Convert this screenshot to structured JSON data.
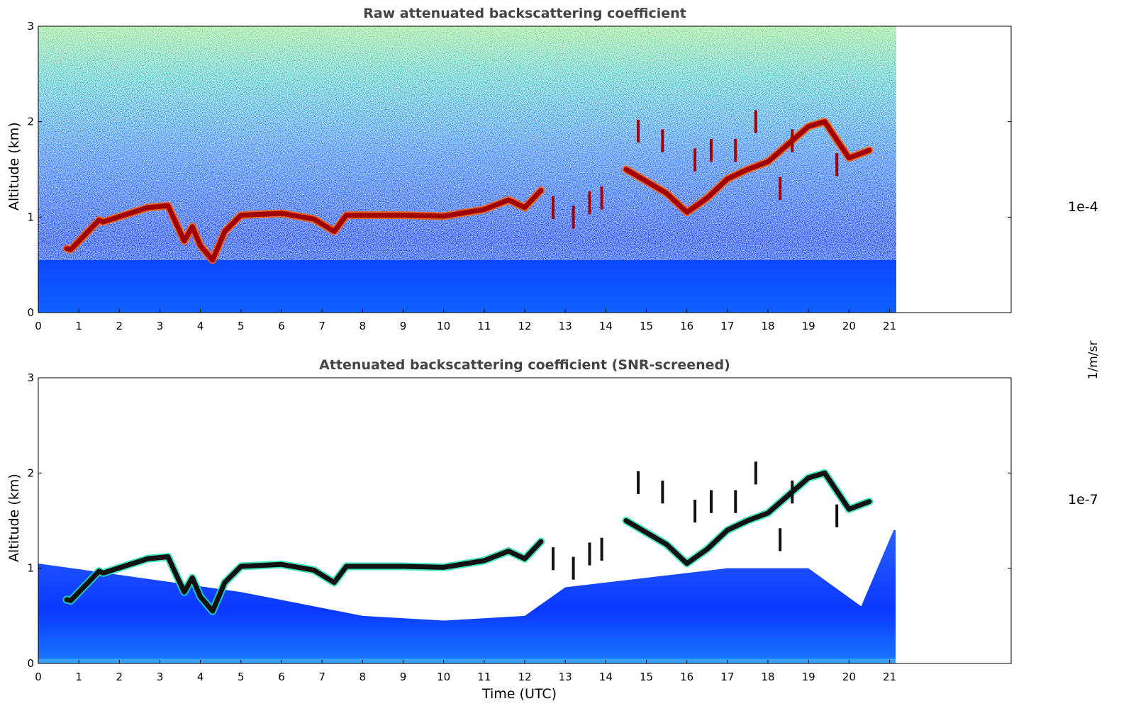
{
  "chart_data": [
    {
      "type": "heatmap",
      "title": "Raw attenuated backscattering coefficient",
      "xlabel": "",
      "ylabel": "Altitude (km)",
      "xlim": [
        0,
        24
      ],
      "ylim": [
        0,
        3
      ],
      "xticks": [
        "0",
        "1",
        "2",
        "3",
        "4",
        "5",
        "6",
        "7",
        "8",
        "9",
        "10",
        "11",
        "12",
        "13",
        "14",
        "15",
        "16",
        "17",
        "18",
        "19",
        "20",
        "21"
      ],
      "yticks": [
        "0",
        "1",
        "2",
        "3"
      ],
      "data_extent_hours": [
        0,
        21.15
      ],
      "cloud_layer_km": [
        [
          0.7,
          0.67
        ],
        [
          0.8,
          0.66
        ],
        [
          1.5,
          0.97
        ],
        [
          1.6,
          0.95
        ],
        [
          2.7,
          1.1
        ],
        [
          3.2,
          1.12
        ],
        [
          3.6,
          0.75
        ],
        [
          3.8,
          0.9
        ],
        [
          4.0,
          0.7
        ],
        [
          4.3,
          0.55
        ],
        [
          4.6,
          0.85
        ],
        [
          5.0,
          1.02
        ],
        [
          6.0,
          1.04
        ],
        [
          6.8,
          0.98
        ],
        [
          7.3,
          0.85
        ],
        [
          7.6,
          1.02
        ],
        [
          9.0,
          1.02
        ],
        [
          10.0,
          1.01
        ],
        [
          11.0,
          1.08
        ],
        [
          11.6,
          1.18
        ],
        [
          12.0,
          1.1
        ],
        [
          12.4,
          1.28
        ]
      ],
      "upper_cloud_km": [
        [
          14.5,
          1.5
        ],
        [
          15.5,
          1.25
        ],
        [
          16.0,
          1.05
        ],
        [
          16.5,
          1.2
        ],
        [
          17.0,
          1.4
        ],
        [
          17.5,
          1.5
        ],
        [
          18.0,
          1.58
        ],
        [
          19.0,
          1.95
        ],
        [
          19.4,
          2.0
        ],
        [
          20.0,
          1.62
        ],
        [
          20.5,
          1.7
        ]
      ],
      "noise_floor_km": 0.55
    },
    {
      "type": "heatmap",
      "title": "Attenuated backscattering coefficient (SNR-screened)",
      "xlabel": "Time (UTC)",
      "ylabel": "Altitude (km)",
      "xlim": [
        0,
        24
      ],
      "ylim": [
        0,
        3
      ],
      "xticks": [
        "0",
        "1",
        "2",
        "3",
        "4",
        "5",
        "6",
        "7",
        "8",
        "9",
        "10",
        "11",
        "12",
        "13",
        "14",
        "15",
        "16",
        "17",
        "18",
        "19",
        "20",
        "21"
      ],
      "yticks": [
        "0",
        "1",
        "2",
        "3"
      ],
      "data_extent_hours": [
        0,
        21.15
      ],
      "cloud_layer_km": [
        [
          0.7,
          0.67
        ],
        [
          0.8,
          0.66
        ],
        [
          1.5,
          0.97
        ],
        [
          1.6,
          0.95
        ],
        [
          2.7,
          1.1
        ],
        [
          3.2,
          1.12
        ],
        [
          3.6,
          0.75
        ],
        [
          3.8,
          0.9
        ],
        [
          4.0,
          0.7
        ],
        [
          4.3,
          0.55
        ],
        [
          4.6,
          0.85
        ],
        [
          5.0,
          1.02
        ],
        [
          6.0,
          1.04
        ],
        [
          6.8,
          0.98
        ],
        [
          7.3,
          0.85
        ],
        [
          7.6,
          1.02
        ],
        [
          9.0,
          1.02
        ],
        [
          10.0,
          1.01
        ],
        [
          11.0,
          1.08
        ],
        [
          11.6,
          1.18
        ],
        [
          12.0,
          1.1
        ],
        [
          12.4,
          1.28
        ]
      ],
      "upper_cloud_km": [
        [
          14.5,
          1.5
        ],
        [
          15.5,
          1.25
        ],
        [
          16.0,
          1.05
        ],
        [
          16.5,
          1.2
        ],
        [
          17.0,
          1.4
        ],
        [
          17.5,
          1.5
        ],
        [
          18.0,
          1.58
        ],
        [
          19.0,
          1.95
        ],
        [
          19.4,
          2.0
        ],
        [
          20.0,
          1.62
        ],
        [
          20.5,
          1.7
        ]
      ],
      "aerosol_top_km": [
        [
          0,
          1.05
        ],
        [
          5,
          0.75
        ],
        [
          8,
          0.5
        ],
        [
          10,
          0.45
        ],
        [
          12,
          0.5
        ],
        [
          13,
          0.8
        ],
        [
          15,
          0.9
        ],
        [
          17,
          1.0
        ],
        [
          19,
          1.0
        ],
        [
          20.3,
          0.6
        ],
        [
          21.1,
          1.4
        ]
      ]
    }
  ],
  "colorbar": {
    "label": "1/m/sr",
    "max_label": "1e-4",
    "min_label": "1e-7",
    "scale": "log",
    "colormap": [
      "#e8e8ff",
      "#0000ff",
      "#0080ff",
      "#00ffff",
      "#80ff80",
      "#ffff00",
      "#ff8000",
      "#ff0000",
      "#800000"
    ]
  }
}
